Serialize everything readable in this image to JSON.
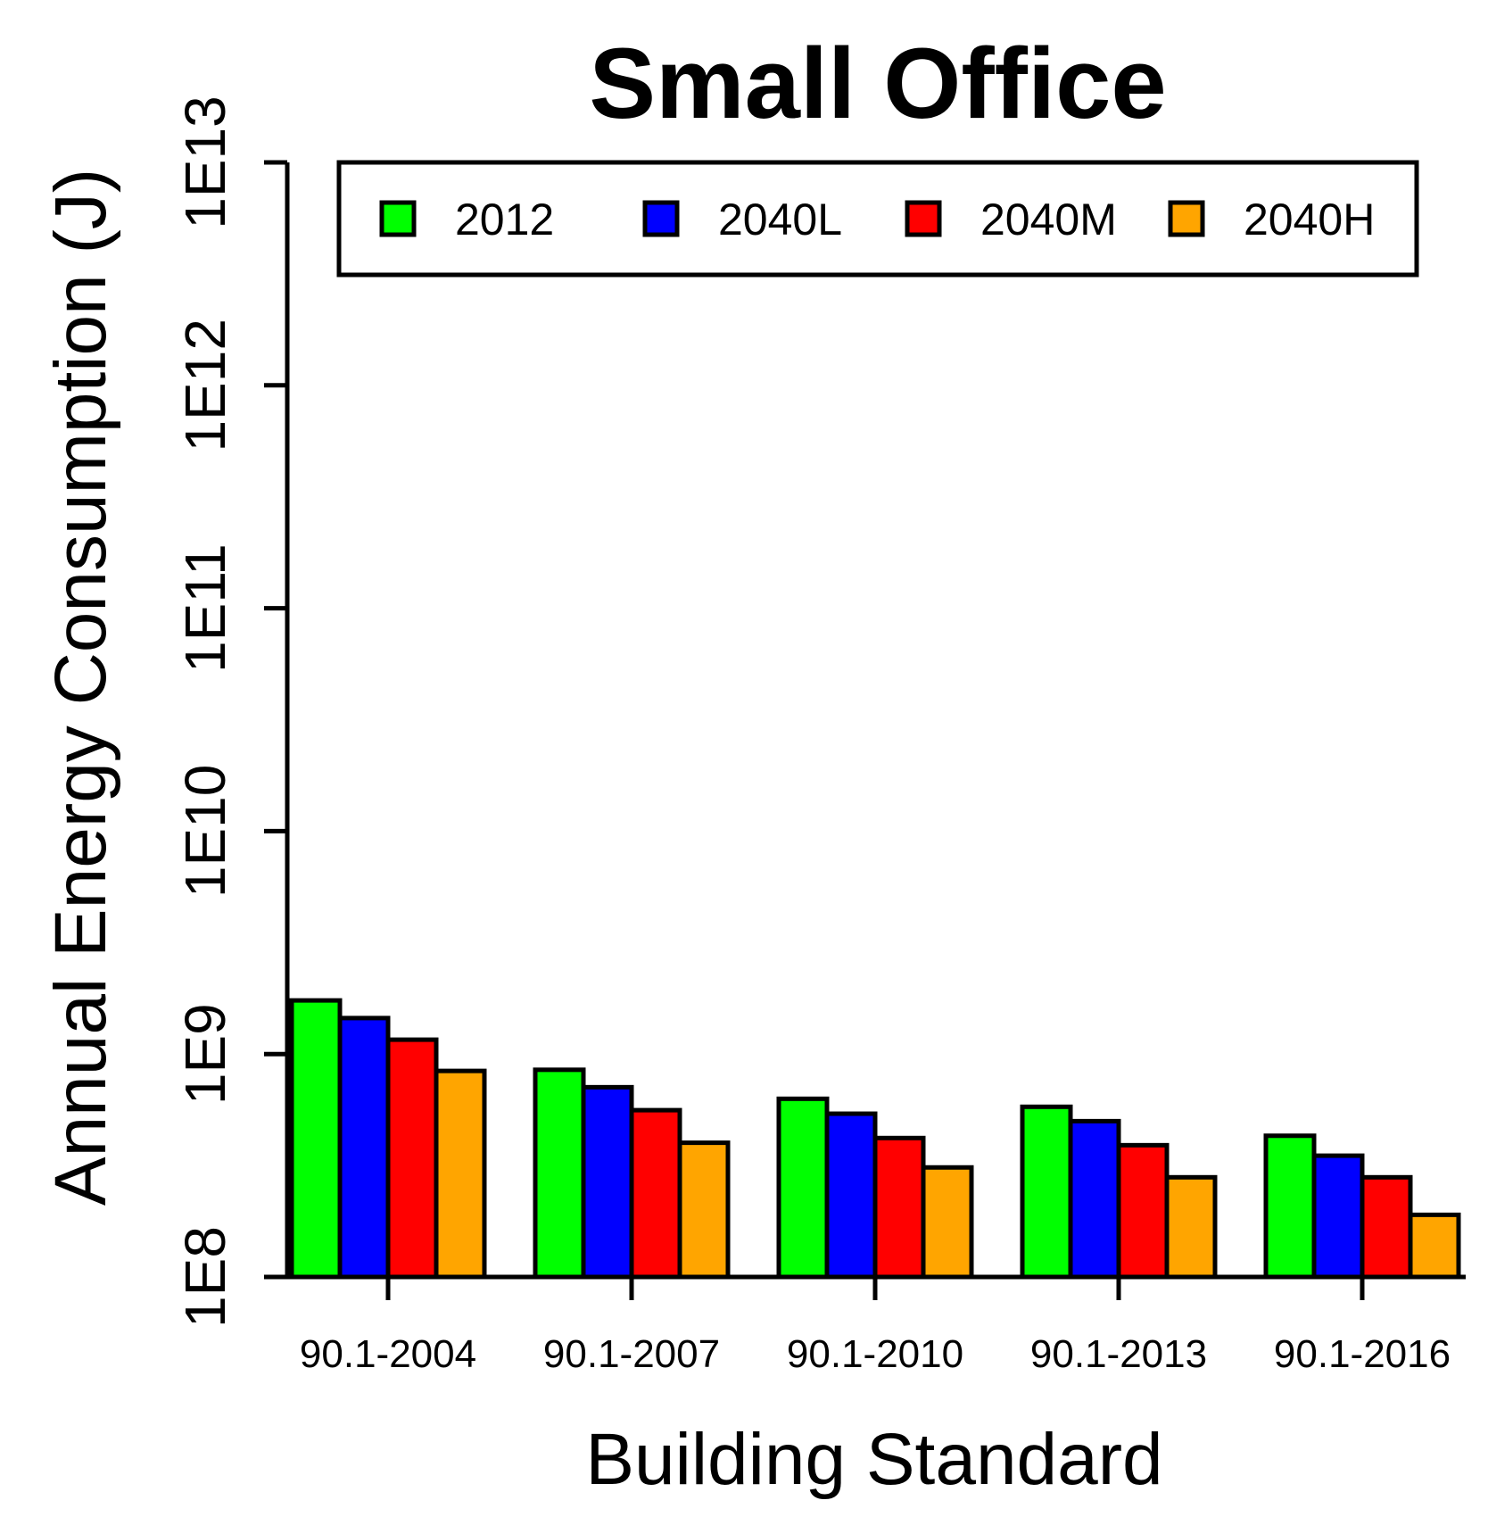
{
  "chart_data": {
    "type": "bar",
    "title": "Small Office",
    "xlabel": "Building Standard",
    "ylabel": "Annual Energy Consumption (J)",
    "yscale": "log10",
    "ylim": [
      100000000,
      10000000000000
    ],
    "yticks": [
      {
        "value": 100000000,
        "label": "1E8"
      },
      {
        "value": 1000000000,
        "label": "1E9"
      },
      {
        "value": 10000000000,
        "label": "1E10"
      },
      {
        "value": 100000000000,
        "label": "1E11"
      },
      {
        "value": 1000000000000,
        "label": "1E12"
      },
      {
        "value": 10000000000000,
        "label": "1E13"
      }
    ],
    "categories": [
      "90.1-2004",
      "90.1-2007",
      "90.1-2010",
      "90.1-2013",
      "90.1-2016"
    ],
    "legend_position": "top",
    "series": [
      {
        "name": "2012",
        "color": "#00ff00",
        "values": [
          1740000000,
          850000000,
          630000000,
          580000000,
          430000000
        ]
      },
      {
        "name": "2040L",
        "color": "#0000ff",
        "values": [
          1450000000,
          710000000,
          540000000,
          500000000,
          350000000
        ]
      },
      {
        "name": "2040M",
        "color": "#ff0000",
        "values": [
          1160000000,
          560000000,
          420000000,
          390000000,
          280000000
        ]
      },
      {
        "name": "2040H",
        "color": "#ffa500",
        "values": [
          840000000,
          400000000,
          310000000,
          280000000,
          190000000
        ]
      }
    ]
  }
}
